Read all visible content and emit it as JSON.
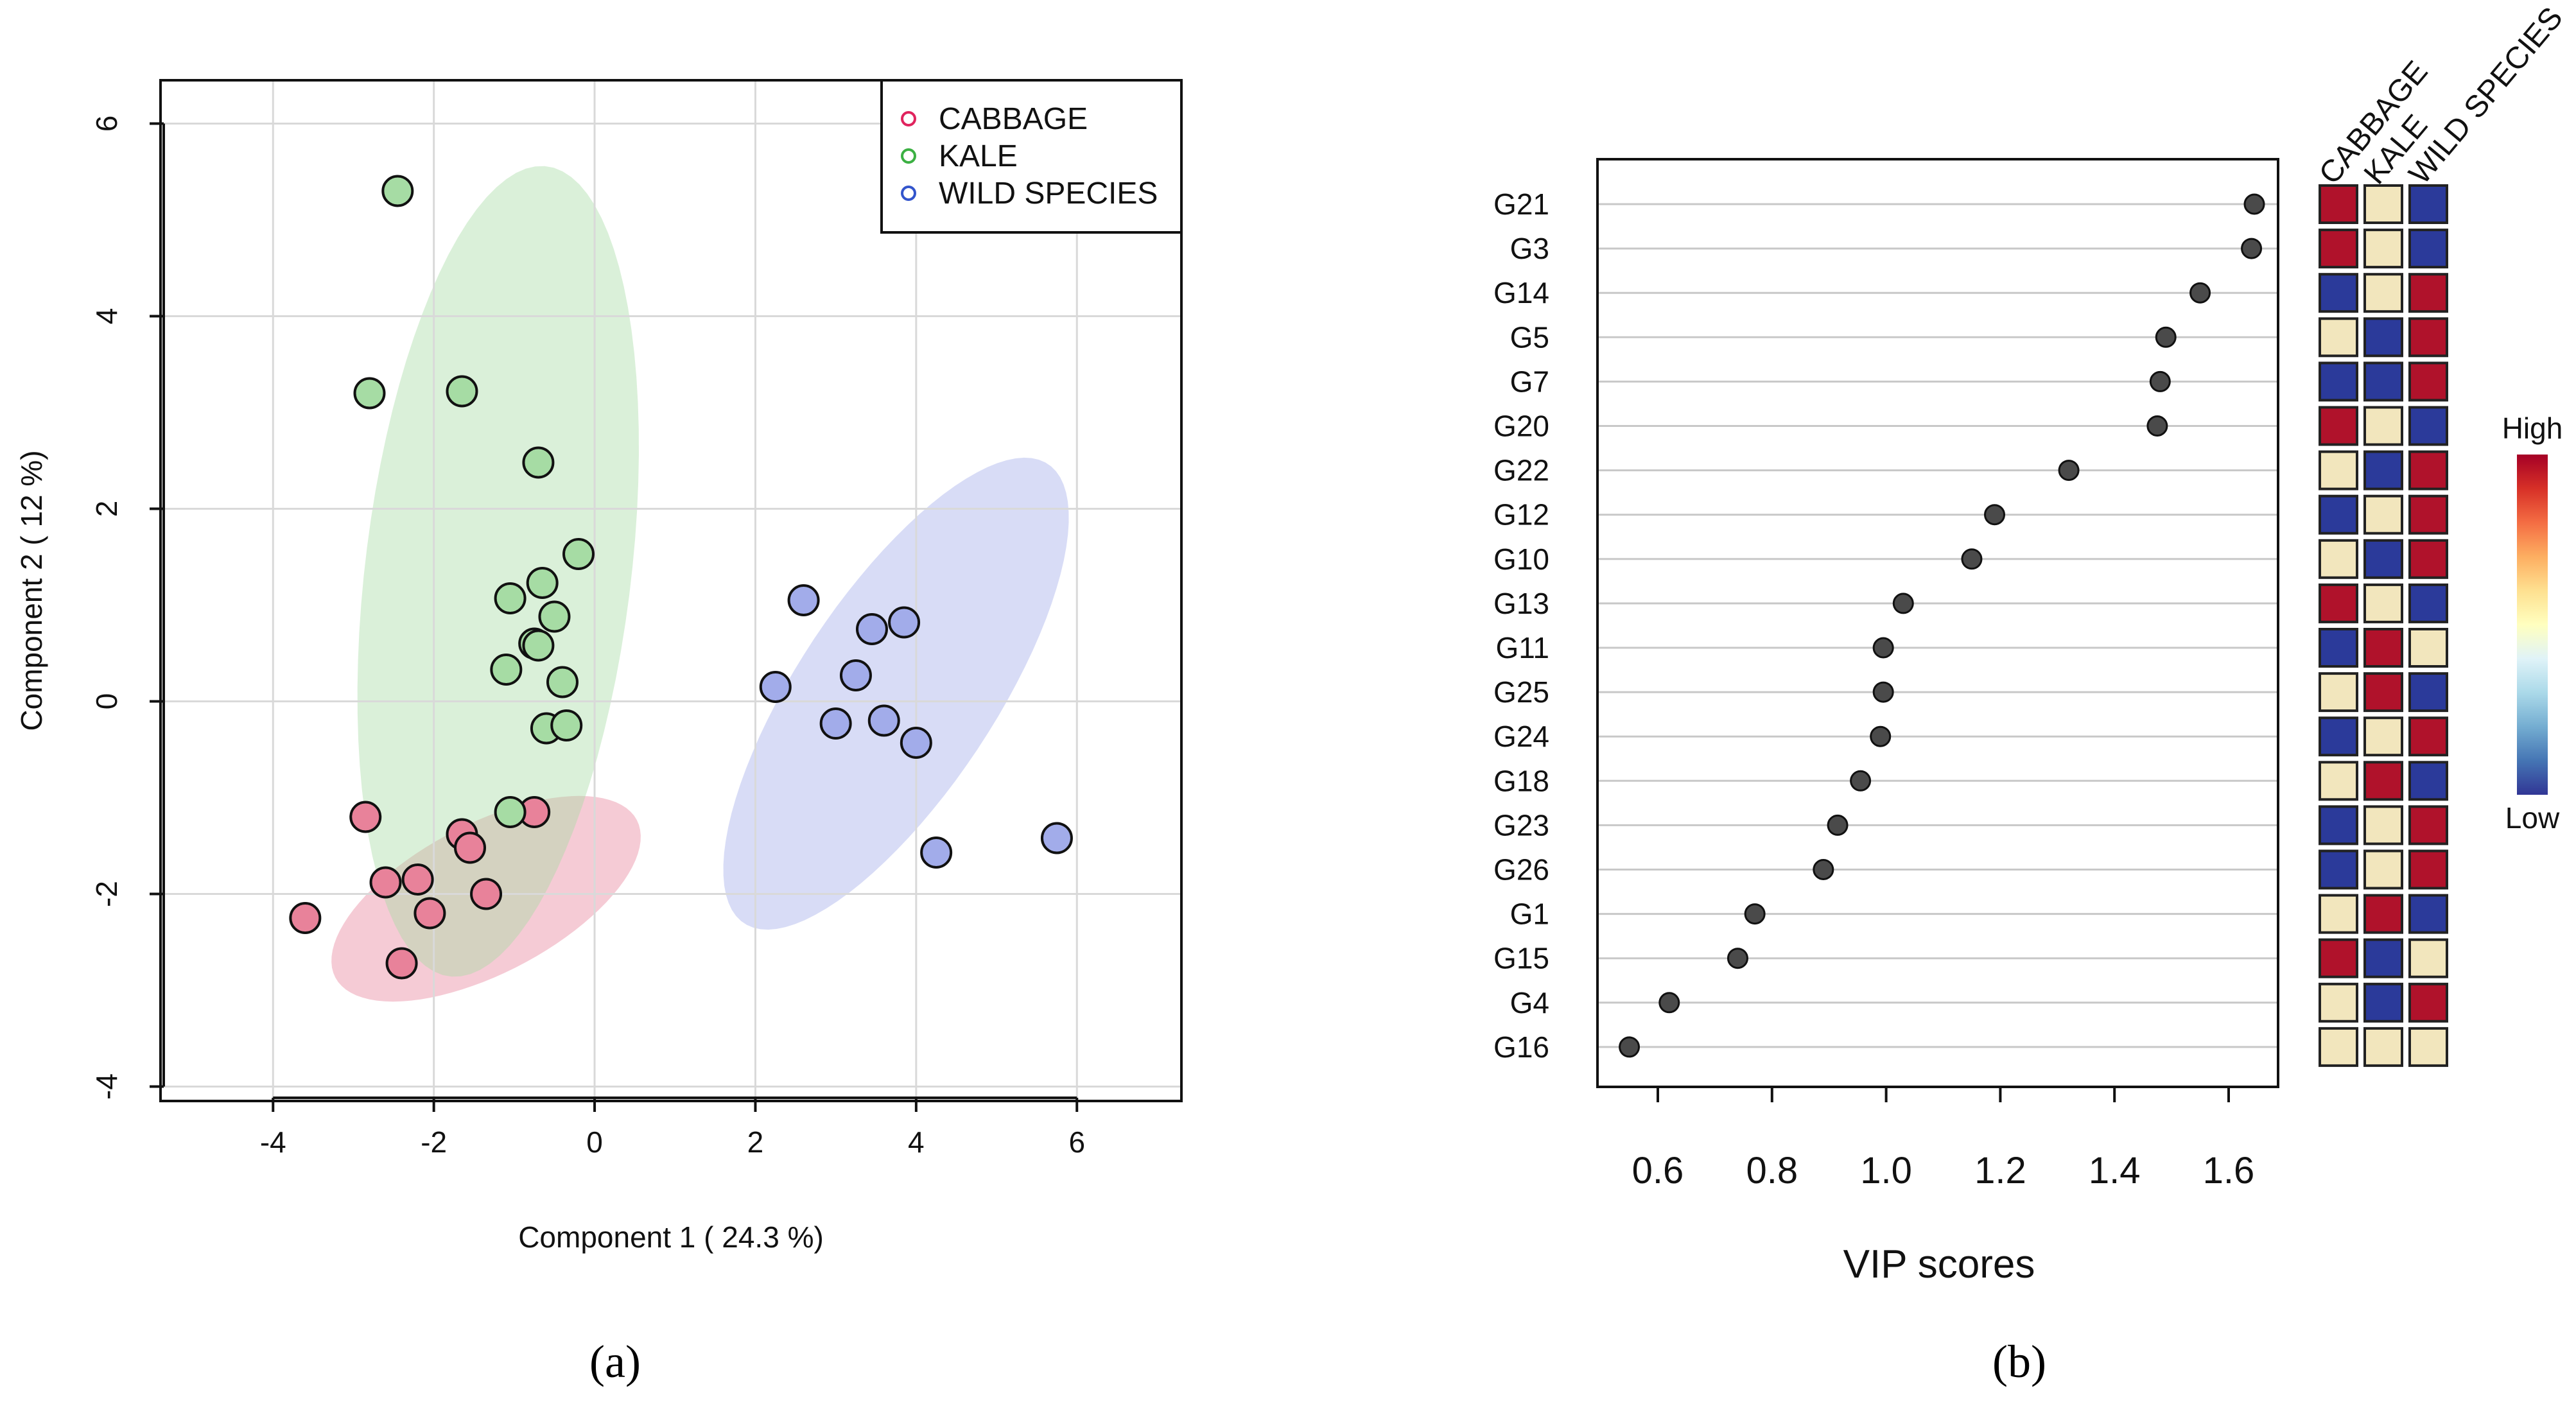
{
  "chart_data": [
    {
      "type": "scatter",
      "panel_label": "(a)",
      "xlabel": "Component 1 ( 24.3 %)",
      "ylabel": "Component 2 ( 12 %)",
      "xlim": [
        -5.4,
        7.3
      ],
      "ylim": [
        -4.15,
        6.45
      ],
      "x_ticks": [
        "-4",
        "-2",
        "0",
        "2",
        "4",
        "6"
      ],
      "y_ticks": [
        "-4",
        "-2",
        "0",
        "2",
        "4",
        "6"
      ],
      "grid": true,
      "legend_position": "top-right",
      "series": [
        {
          "name": "CABBAGE",
          "color": "#e8829a",
          "legend_color": "#e0245e",
          "x": [
            -2.85,
            -2.6,
            -2.2,
            -2.05,
            -1.65,
            -1.55,
            -1.35,
            -0.75,
            -3.6,
            -2.4
          ],
          "y": [
            -1.2,
            -1.88,
            -1.85,
            -2.2,
            -1.38,
            -1.52,
            -2.0,
            -1.15,
            -2.25,
            -2.72
          ],
          "ellipse": {
            "cx": -1.35,
            "cy": -2.05,
            "rx": 2.05,
            "ry": 0.8,
            "angle_deg": 22
          }
        },
        {
          "name": "KALE",
          "color": "#a6dca4",
          "legend_color": "#3cb043",
          "x": [
            -2.45,
            -2.8,
            -1.65,
            -0.7,
            -0.2,
            -0.65,
            -1.05,
            -0.5,
            -0.75,
            -0.7,
            -1.1,
            -0.4,
            -0.6,
            -0.35,
            -1.05
          ],
          "y": [
            5.3,
            3.2,
            3.22,
            2.48,
            1.53,
            1.23,
            1.07,
            0.88,
            0.6,
            0.58,
            0.33,
            0.2,
            -0.28,
            -0.25,
            -1.15
          ],
          "ellipse": {
            "cx": -1.2,
            "cy": 1.35,
            "rx": 1.65,
            "ry": 4.25,
            "angle_deg": -8.6
          }
        },
        {
          "name": "WILD SPECIES",
          "color": "#a2acea",
          "legend_color": "#3355cc",
          "x": [
            2.6,
            3.45,
            3.85,
            2.25,
            3.25,
            3.0,
            3.6,
            4.0,
            4.25,
            5.75
          ],
          "y": [
            1.05,
            0.75,
            0.82,
            0.15,
            0.27,
            -0.23,
            -0.2,
            -0.43,
            -1.57,
            -1.42
          ],
          "ellipse": {
            "cx": 3.75,
            "cy": 0.08,
            "rx": 1.15,
            "ry": 3.05,
            "angle_deg": -40
          }
        }
      ]
    },
    {
      "type": "dot",
      "panel_label": "(b)",
      "xlabel": "VIP scores",
      "xlim": [
        0.5,
        1.68
      ],
      "x_ticks": [
        "0.6",
        "0.8",
        "1.0",
        "1.2",
        "1.4",
        "1.6"
      ],
      "categories": [
        "G21",
        "G3",
        "G14",
        "G5",
        "G7",
        "G20",
        "G22",
        "G12",
        "G10",
        "G13",
        "G11",
        "G25",
        "G24",
        "G18",
        "G23",
        "G26",
        "G1",
        "G15",
        "G4",
        "G16"
      ],
      "values": [
        1.645,
        1.64,
        1.55,
        1.49,
        1.48,
        1.475,
        1.32,
        1.19,
        1.15,
        1.03,
        0.995,
        0.995,
        0.99,
        0.955,
        0.915,
        0.89,
        0.77,
        0.74,
        0.62,
        0.55
      ],
      "heatmap": {
        "columns": [
          "CABBAGE",
          "KALE",
          "WILD SPECIES"
        ],
        "rows": [
          [
            "high",
            "mid",
            "low"
          ],
          [
            "high",
            "mid",
            "low"
          ],
          [
            "low",
            "mid",
            "high"
          ],
          [
            "mid",
            "low",
            "high"
          ],
          [
            "low",
            "low",
            "high"
          ],
          [
            "high",
            "mid",
            "low"
          ],
          [
            "mid",
            "low",
            "high"
          ],
          [
            "low",
            "mid",
            "high"
          ],
          [
            "mid",
            "low",
            "high"
          ],
          [
            "high",
            "mid",
            "low"
          ],
          [
            "low",
            "high",
            "mid"
          ],
          [
            "mid",
            "high",
            "low"
          ],
          [
            "low",
            "mid",
            "high"
          ],
          [
            "mid",
            "high",
            "low"
          ],
          [
            "low",
            "mid",
            "high"
          ],
          [
            "low",
            "mid",
            "high"
          ],
          [
            "mid",
            "high",
            "low"
          ],
          [
            "high",
            "low",
            "mid"
          ],
          [
            "mid",
            "low",
            "high"
          ],
          [
            "mid",
            "mid",
            "mid"
          ]
        ],
        "colors": {
          "high": "#b0122b",
          "mid": "#f2e6bd",
          "low": "#2b3a9a"
        },
        "scale_high_label": "High",
        "scale_low_label": "Low",
        "gradient": [
          "#a50026",
          "#d73027",
          "#f46d43",
          "#fdae61",
          "#fee090",
          "#ffffbf",
          "#e0f3f8",
          "#abd9e9",
          "#74add1",
          "#4575b4",
          "#313695"
        ]
      }
    }
  ]
}
